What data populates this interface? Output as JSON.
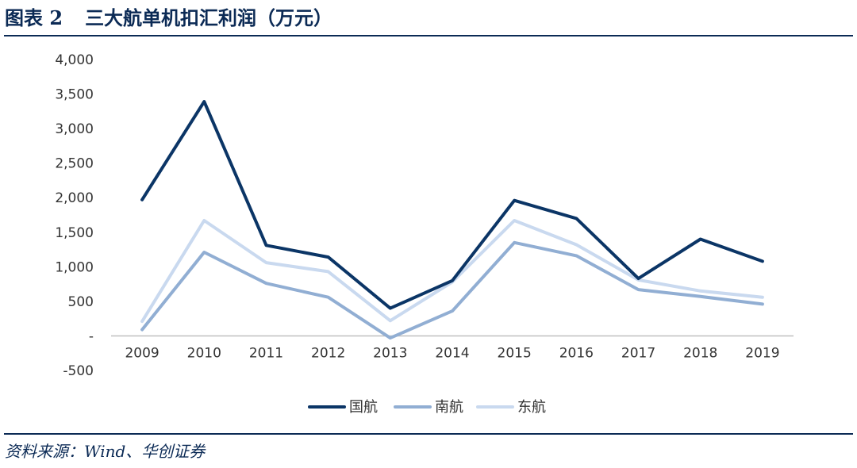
{
  "figure": {
    "label": "图表 2",
    "title": "三大航单机扣汇利润（万元）",
    "source": "资料来源：Wind、华创证券"
  },
  "chart_data": {
    "type": "line",
    "title": "三大航单机扣汇利润（万元）",
    "xlabel": "",
    "ylabel": "",
    "categories": [
      "2009",
      "2010",
      "2011",
      "2012",
      "2013",
      "2014",
      "2015",
      "2016",
      "2017",
      "2018",
      "2019"
    ],
    "y_ticks": [
      "-500",
      "-",
      "500",
      "1,000",
      "1,500",
      "2,000",
      "2,500",
      "3,000",
      "3,500",
      "4,000"
    ],
    "ylim": [
      -500,
      4000
    ],
    "grid": false,
    "legend_position": "bottom",
    "series": [
      {
        "name": "国航",
        "color": "#0b3566",
        "values": [
          1970,
          3390,
          1310,
          1140,
          400,
          800,
          1960,
          1700,
          830,
          1400,
          1080
        ]
      },
      {
        "name": "南航",
        "color": "#91aed3",
        "values": [
          90,
          1210,
          760,
          560,
          -30,
          360,
          1350,
          1160,
          670,
          570,
          460
        ]
      },
      {
        "name": "东航",
        "color": "#c9d9ef",
        "values": [
          210,
          1670,
          1060,
          930,
          220,
          780,
          1670,
          1320,
          810,
          650,
          560
        ]
      }
    ]
  }
}
